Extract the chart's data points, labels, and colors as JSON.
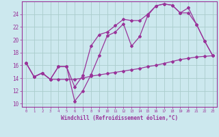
{
  "xlabel": "Windchill (Refroidissement éolien,°C)",
  "background_color": "#cce8ee",
  "grid_color": "#aacccc",
  "line_color": "#993399",
  "xlim": [
    -0.5,
    23.5
  ],
  "ylim": [
    9.5,
    26.0
  ],
  "yticks": [
    10,
    12,
    14,
    16,
    18,
    20,
    22,
    24
  ],
  "xticks": [
    0,
    1,
    2,
    3,
    4,
    5,
    6,
    7,
    8,
    9,
    10,
    11,
    12,
    13,
    14,
    15,
    16,
    17,
    18,
    19,
    20,
    21,
    22,
    23
  ],
  "line1_x": [
    0,
    1,
    2,
    3,
    4,
    5,
    6,
    7,
    8,
    9,
    10,
    11,
    12,
    13,
    14,
    15,
    16,
    17,
    18,
    19,
    20,
    21,
    22,
    23
  ],
  "line1_y": [
    16.4,
    14.2,
    14.8,
    13.8,
    15.8,
    15.8,
    10.4,
    12.0,
    14.5,
    17.5,
    20.6,
    21.2,
    22.5,
    19.0,
    20.5,
    23.8,
    25.3,
    25.6,
    25.4,
    24.2,
    24.2,
    22.4,
    19.8,
    17.5
  ],
  "line2_x": [
    0,
    1,
    2,
    3,
    4,
    5,
    6,
    7,
    8,
    9,
    10,
    11,
    12,
    13,
    14,
    15,
    16,
    17,
    18,
    19,
    20,
    21,
    22,
    23
  ],
  "line2_y": [
    16.4,
    14.2,
    14.8,
    13.8,
    15.8,
    15.8,
    12.6,
    14.4,
    19.0,
    20.8,
    21.2,
    22.2,
    23.2,
    23.0,
    23.0,
    24.0,
    25.3,
    25.6,
    25.4,
    24.2,
    25.0,
    22.4,
    19.8,
    17.5
  ],
  "line3_x": [
    0,
    1,
    2,
    3,
    4,
    5,
    6,
    7,
    8,
    9,
    10,
    11,
    12,
    13,
    14,
    15,
    16,
    17,
    18,
    19,
    20,
    21,
    22,
    23
  ],
  "line3_y": [
    16.4,
    14.2,
    14.8,
    13.8,
    13.8,
    13.8,
    13.8,
    14.0,
    14.3,
    14.5,
    14.7,
    14.9,
    15.1,
    15.3,
    15.5,
    15.8,
    16.0,
    16.3,
    16.6,
    16.9,
    17.1,
    17.3,
    17.4,
    17.5
  ]
}
